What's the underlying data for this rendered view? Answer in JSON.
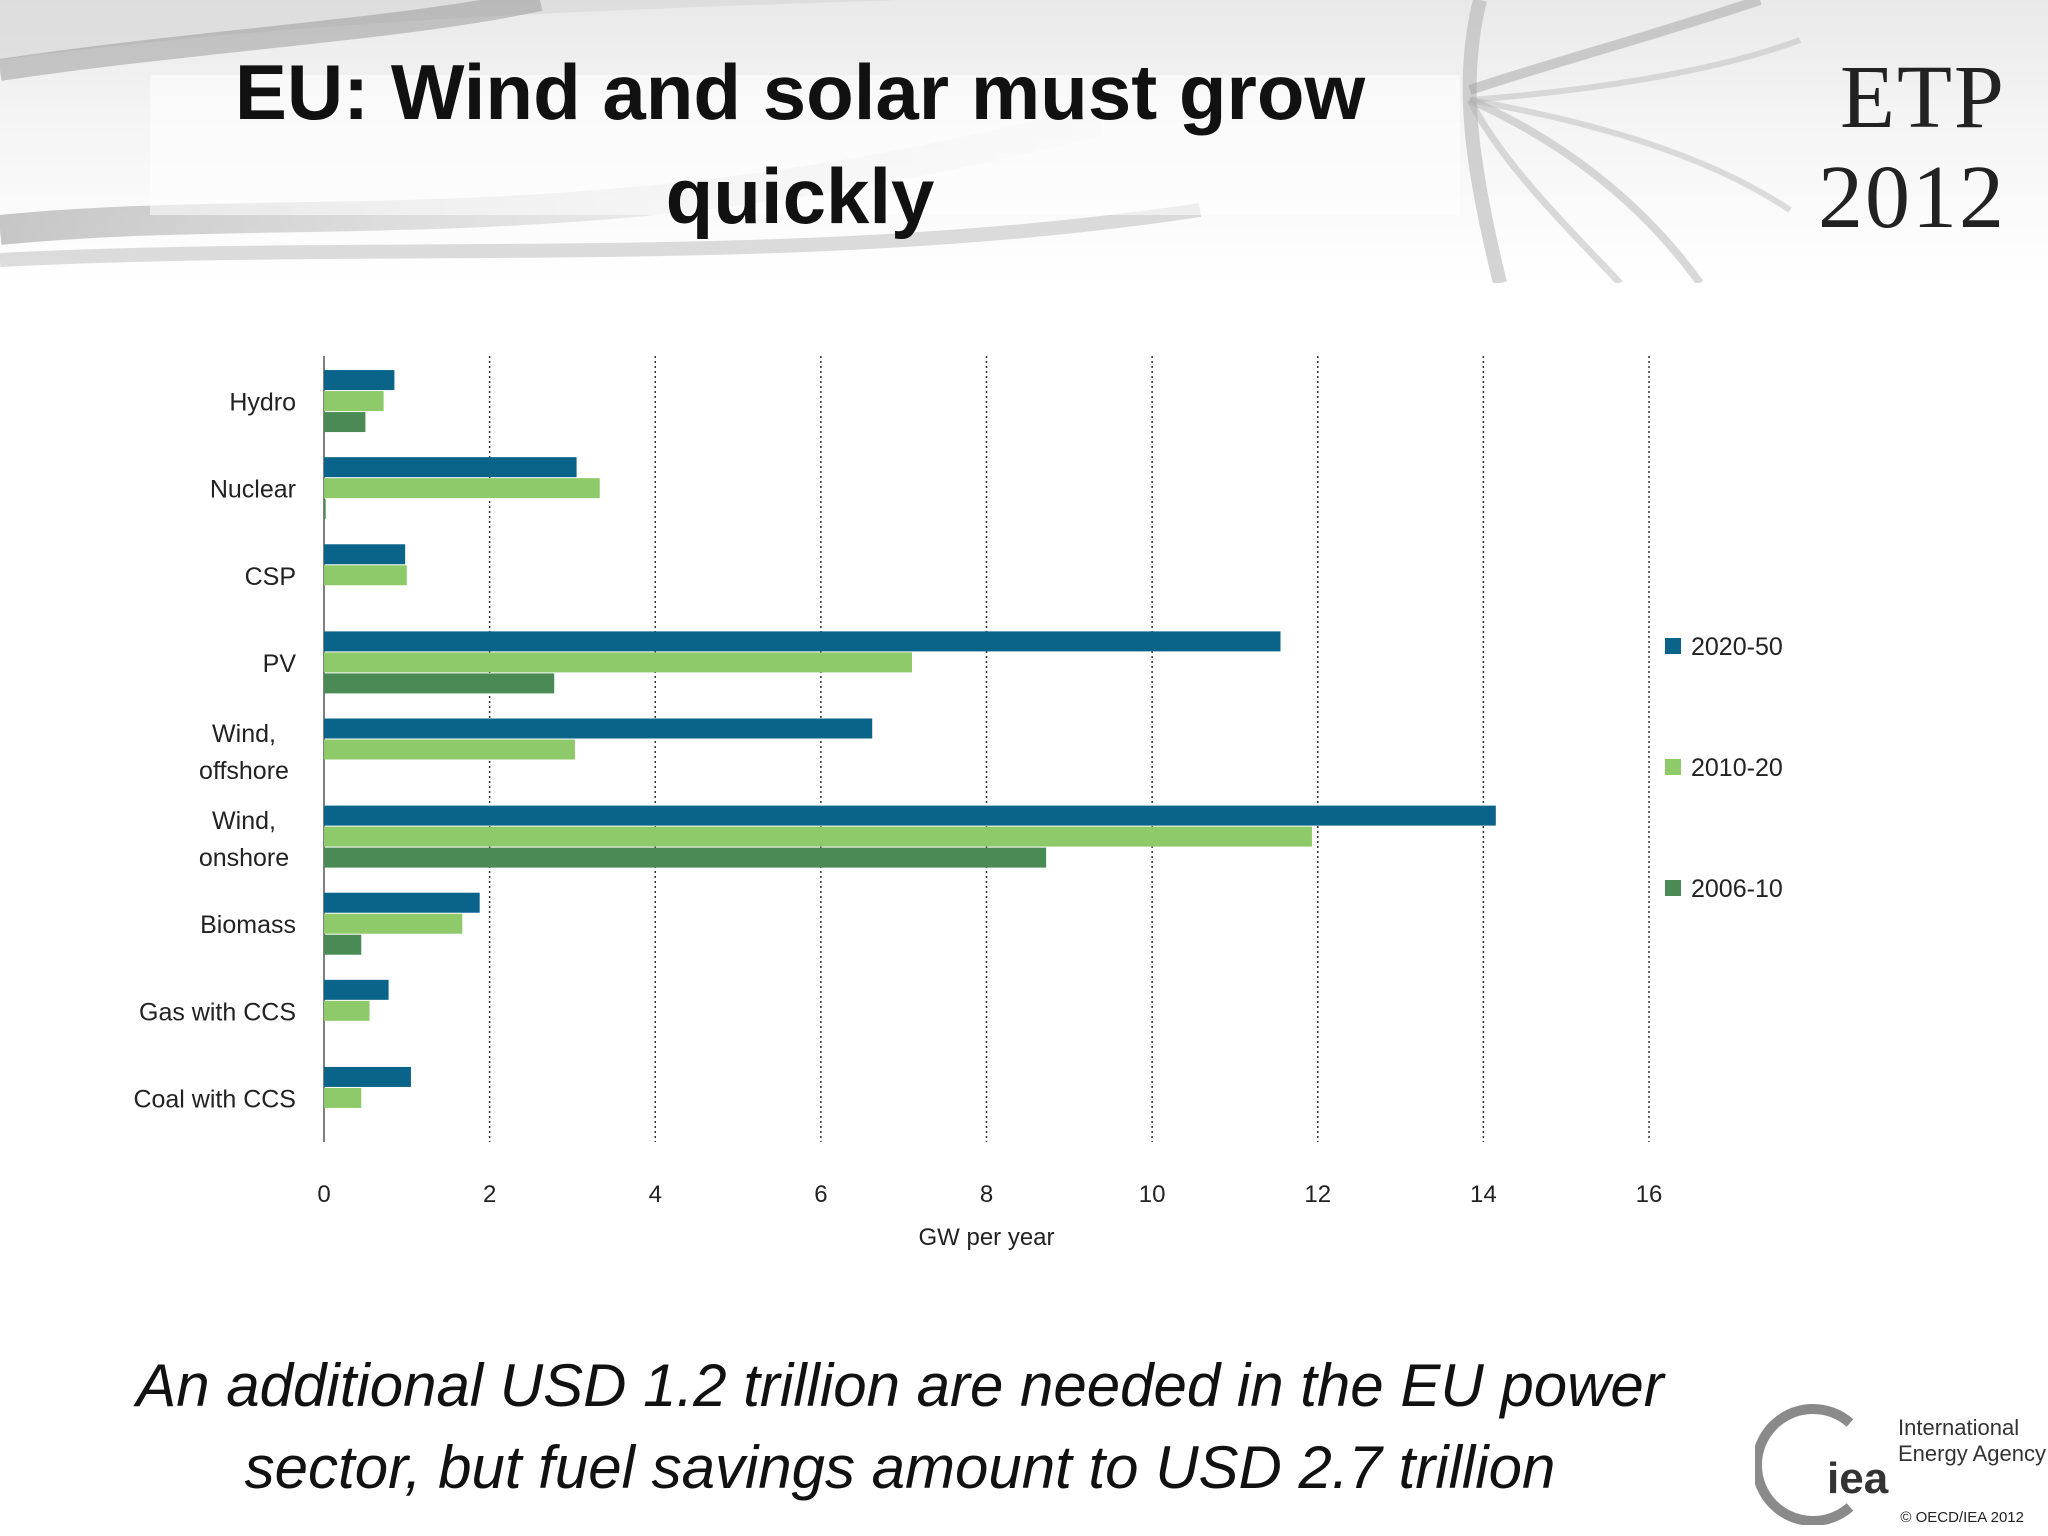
{
  "slide": {
    "title_line1": "EU: Wind and solar must grow",
    "title_line2": "quickly",
    "brand_line1": "ETP",
    "brand_line2": "2012",
    "caption_line1": "An additional USD 1.2 trillion are needed in the EU power",
    "caption_line2": "sector, but fuel savings amount to USD 2.7 trillion",
    "logo_text": "iea",
    "logo_name_line1": "International",
    "logo_name_line2": "Energy Agency",
    "copyright": "© OECD/IEA 2012"
  },
  "chart_data": {
    "type": "bar",
    "orientation": "horizontal",
    "categories": [
      [
        "Hydro"
      ],
      [
        "Nuclear"
      ],
      [
        "CSP"
      ],
      [
        "PV"
      ],
      [
        "Wind,",
        "offshore"
      ],
      [
        "Wind,",
        "onshore"
      ],
      [
        "Biomass"
      ],
      [
        "Gas with CCS"
      ],
      [
        "Coal with CCS"
      ]
    ],
    "series": [
      {
        "name": "2020-50",
        "color": "#0a6388",
        "values": [
          0.85,
          3.05,
          0.98,
          11.55,
          6.62,
          14.15,
          1.88,
          0.78,
          1.05
        ]
      },
      {
        "name": "2010-20",
        "color": "#8ec96a",
        "values": [
          0.72,
          3.33,
          1.0,
          7.1,
          3.03,
          11.93,
          1.67,
          0.55,
          0.45
        ]
      },
      {
        "name": "2006-10",
        "color": "#4a8a55",
        "values": [
          0.5,
          0.02,
          0,
          2.78,
          0,
          8.72,
          0.45,
          0,
          0
        ]
      }
    ],
    "xlabel": "GW per year",
    "xlim": [
      0,
      16
    ],
    "xticks": [
      0,
      2,
      4,
      6,
      8,
      10,
      12,
      14,
      16
    ],
    "grid": "vertical dotted",
    "legend_position": "right"
  }
}
